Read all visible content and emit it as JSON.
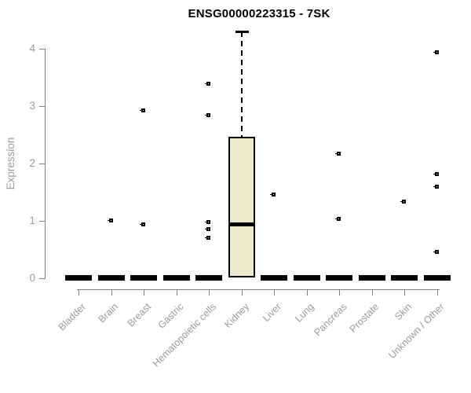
{
  "chart_data": {
    "type": "boxplot",
    "title": "ENSG00000223315 - 7SK",
    "xlabel": "",
    "ylabel": "Expression",
    "ylim": [
      0,
      4.3
    ],
    "yticks": [
      0,
      1,
      2,
      3,
      4
    ],
    "grid": false,
    "legend": "none",
    "colors": {
      "box_fill": "#EDE7CC",
      "box_border": "#000000",
      "median": "#000000",
      "outlier": "#000000",
      "axis": "#808080",
      "tick_text": "#9A9A9A",
      "title_text": "#000000"
    },
    "categories": [
      "Bladder",
      "Brain",
      "Breast",
      "Gastric",
      "Hematopoietic cells",
      "Kidney",
      "Liver",
      "Lung",
      "Pancreas",
      "Prostate",
      "Skin",
      "Unknown / Other"
    ],
    "groups": [
      {
        "label": "Bladder",
        "zero_bar": true,
        "outliers": []
      },
      {
        "label": "Brain",
        "zero_bar": true,
        "outliers": [
          1.01
        ]
      },
      {
        "label": "Breast",
        "zero_bar": true,
        "outliers": [
          2.93,
          0.95
        ]
      },
      {
        "label": "Gastric",
        "zero_bar": true,
        "outliers": []
      },
      {
        "label": "Hematopoietic cells",
        "zero_bar": true,
        "outliers": [
          3.4,
          2.85,
          0.99,
          0.86,
          0.71
        ]
      },
      {
        "label": "Kidney",
        "zero_bar": false,
        "outliers": [],
        "box": {
          "whisker_high": 4.3,
          "q3": 2.47,
          "median": 0.94,
          "q1": 0.02
        }
      },
      {
        "label": "Liver",
        "zero_bar": true,
        "outliers": [
          1.47
        ]
      },
      {
        "label": "Lung",
        "zero_bar": true,
        "outliers": []
      },
      {
        "label": "Pancreas",
        "zero_bar": true,
        "outliers": [
          2.18,
          1.04
        ]
      },
      {
        "label": "Prostate",
        "zero_bar": true,
        "outliers": []
      },
      {
        "label": "Skin",
        "zero_bar": true,
        "outliers": [
          1.34
        ]
      },
      {
        "label": "Unknown / Other",
        "zero_bar": true,
        "outliers": [
          3.95,
          1.82,
          1.6,
          0.47
        ]
      }
    ]
  }
}
